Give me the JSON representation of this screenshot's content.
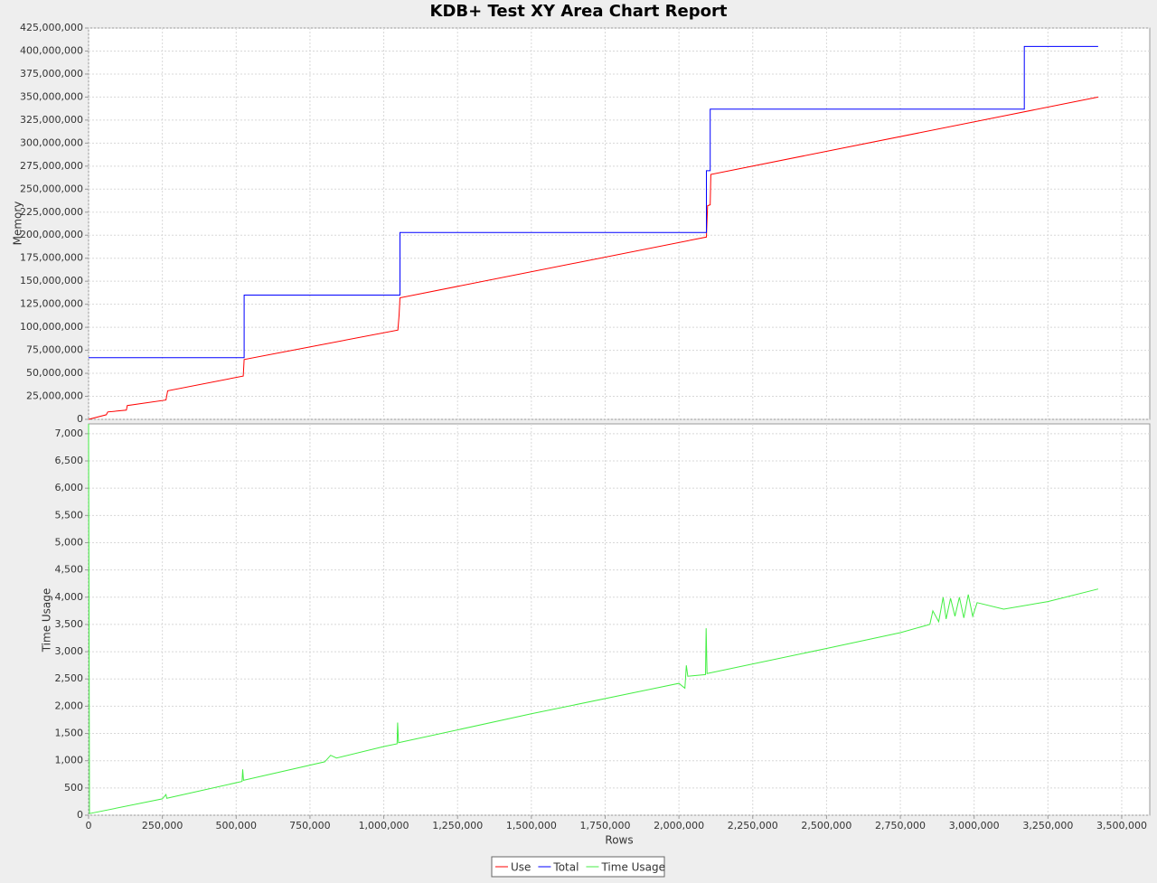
{
  "chart_data": [
    {
      "type": "line",
      "title": "KDB+ Test XY Area Chart Report",
      "ylabel": "Memory",
      "grid": true,
      "ylim": [
        0,
        425000000
      ],
      "yticks": [
        0,
        {
          "value": 25000000,
          "label": "25,000,000"
        },
        {
          "value": 50000000,
          "label": "50,000,000"
        },
        {
          "value": 75000000,
          "label": "75,000,000"
        },
        {
          "value": 100000000,
          "label": "100,000,000"
        },
        {
          "value": 125000000,
          "label": "125,000,000"
        },
        {
          "value": 150000000,
          "label": "150,000,000"
        },
        {
          "value": 175000000,
          "label": "175,000,000"
        },
        {
          "value": 200000000,
          "label": "200,000,000"
        },
        {
          "value": 225000000,
          "label": "225,000,000"
        },
        {
          "value": 250000000,
          "label": "250,000,000"
        },
        {
          "value": 275000000,
          "label": "275,000,000"
        },
        {
          "value": 300000000,
          "label": "300,000,000"
        },
        {
          "value": 325000000,
          "label": "325,000,000"
        },
        {
          "value": 350000000,
          "label": "350,000,000"
        },
        {
          "value": 375000000,
          "label": "375,000,000"
        },
        {
          "value": 400000000,
          "label": "400,000,000"
        },
        {
          "value": 425000000,
          "label": "425,000,000"
        }
      ],
      "series": [
        {
          "name": "Use",
          "color": "#ff0000",
          "x": [
            0,
            60000,
            65000,
            128000,
            131000,
            262000,
            268000,
            524000,
            527000,
            1048000,
            1052000,
            1055000,
            2093000,
            2097000,
            2106000,
            2108000,
            3420000
          ],
          "values": [
            0,
            5000000,
            8000000,
            10000000,
            15000000,
            21000000,
            31000000,
            47000000,
            65000000,
            97000000,
            113000000,
            132000000,
            198000000,
            232000000,
            233000000,
            266000000,
            350000000
          ]
        },
        {
          "name": "Total",
          "color": "#0000ff",
          "x": [
            0,
            527000,
            527000,
            1055000,
            1055000,
            2093000,
            2093000,
            2106000,
            2106000,
            3170000,
            3170000,
            3420000
          ],
          "values": [
            67000000,
            67000000,
            135000000,
            135000000,
            203000000,
            203000000,
            270000000,
            270000000,
            337000000,
            337000000,
            405000000,
            405000000
          ]
        }
      ]
    },
    {
      "type": "line",
      "ylabel": "Time Usage",
      "xlabel": "Rows",
      "grid": true,
      "xlim": [
        0,
        3595000
      ],
      "xticks": [
        0,
        {
          "value": 250000,
          "label": "250,000"
        },
        {
          "value": 500000,
          "label": "500,000"
        },
        {
          "value": 750000,
          "label": "750,000"
        },
        {
          "value": 1000000,
          "label": "1,000,000"
        },
        {
          "value": 1250000,
          "label": "1,250,000"
        },
        {
          "value": 1500000,
          "label": "1,500,000"
        },
        {
          "value": 1750000,
          "label": "1,750,000"
        },
        {
          "value": 2000000,
          "label": "2,000,000"
        },
        {
          "value": 2250000,
          "label": "2,250,000"
        },
        {
          "value": 2500000,
          "label": "2,500,000"
        },
        {
          "value": 2750000,
          "label": "2,750,000"
        },
        {
          "value": 3000000,
          "label": "3,000,000"
        },
        {
          "value": 3250000,
          "label": "3,250,000"
        },
        {
          "value": 3500000,
          "label": "3,500,000"
        }
      ],
      "ylim": [
        0,
        7180
      ],
      "yticks": [
        0,
        500,
        {
          "value": 1000,
          "label": "1,000"
        },
        {
          "value": 1500,
          "label": "1,500"
        },
        {
          "value": 2000,
          "label": "2,000"
        },
        {
          "value": 2500,
          "label": "2,500"
        },
        {
          "value": 3000,
          "label": "3,000"
        },
        {
          "value": 3500,
          "label": "3,500"
        },
        {
          "value": 4000,
          "label": "4,000"
        },
        {
          "value": 4500,
          "label": "4,500"
        },
        {
          "value": 5000,
          "label": "5,000"
        },
        {
          "value": 5500,
          "label": "5,500"
        },
        {
          "value": 6000,
          "label": "6,000"
        },
        {
          "value": 6500,
          "label": "6,500"
        },
        {
          "value": 7000,
          "label": "7,000"
        }
      ],
      "series": [
        {
          "name": "Time Usage",
          "color": "#44ee44",
          "x": [
            0,
            3000,
            250000,
            262000,
            265000,
            520000,
            522000,
            525000,
            800000,
            820000,
            840000,
            1000000,
            1045000,
            1047000,
            1050000,
            1500000,
            2000000,
            2020000,
            2025000,
            2030000,
            2090000,
            2092000,
            2095000,
            2500000,
            2750000,
            2850000,
            2860000,
            2880000,
            2895000,
            2905000,
            2920000,
            2935000,
            2950000,
            2965000,
            2980000,
            2995000,
            3010000,
            3100000,
            3250000,
            3420000
          ],
          "values": [
            7180,
            30,
            300,
            380,
            310,
            620,
            840,
            640,
            980,
            1100,
            1050,
            1260,
            1310,
            1700,
            1330,
            1860,
            2420,
            2330,
            2750,
            2550,
            2580,
            3430,
            2600,
            3060,
            3350,
            3500,
            3750,
            3550,
            4000,
            3600,
            3980,
            3650,
            4000,
            3620,
            4050,
            3650,
            3900,
            3780,
            3920,
            4150
          ]
        }
      ]
    }
  ]
}
